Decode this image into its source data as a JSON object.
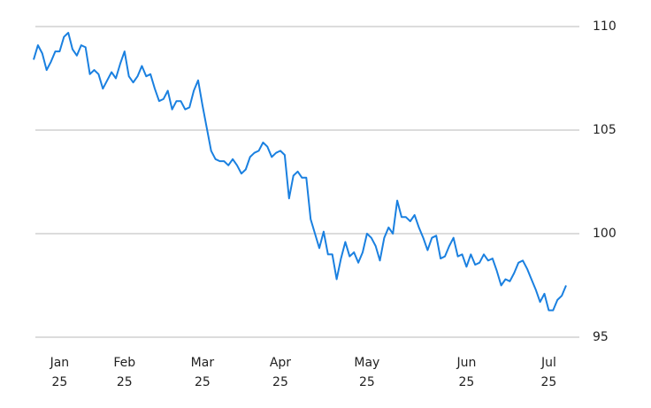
{
  "chart_data": {
    "type": "line",
    "categories": [
      null,
      null,
      null,
      null,
      null,
      null,
      "Jan 25",
      null,
      null,
      null,
      null,
      null,
      null,
      null,
      null,
      null,
      null,
      null,
      null,
      null,
      null,
      "Feb 25",
      null,
      null,
      null,
      null,
      null,
      null,
      null,
      null,
      null,
      null,
      null,
      null,
      null,
      null,
      null,
      null,
      null,
      "Mar 25",
      null,
      null,
      null,
      null,
      null,
      null,
      null,
      null,
      null,
      null,
      null,
      null,
      null,
      null,
      null,
      null,
      null,
      "Apr 25",
      null,
      null,
      null,
      null,
      null,
      null,
      null,
      null,
      null,
      null,
      null,
      null,
      null,
      null,
      null,
      null,
      null,
      null,
      null,
      "May 25",
      null,
      null,
      null,
      null,
      null,
      null,
      null,
      null,
      null,
      null,
      null,
      null,
      null,
      null,
      null,
      null,
      null,
      null,
      null,
      null,
      null,
      null,
      "Jun 25",
      null,
      null,
      null,
      null,
      null,
      null,
      null,
      null,
      null,
      null,
      null,
      null,
      null,
      null,
      null,
      null,
      null,
      null,
      "Jul 25",
      null,
      null,
      null,
      null
    ],
    "values": [
      108.4,
      109.1,
      108.7,
      107.9,
      108.3,
      108.8,
      108.8,
      109.5,
      109.7,
      108.9,
      108.6,
      109.1,
      109.0,
      107.7,
      107.9,
      107.7,
      107.0,
      107.4,
      107.8,
      107.5,
      108.2,
      108.8,
      107.6,
      107.3,
      107.6,
      108.1,
      107.6,
      107.7,
      107.0,
      106.4,
      106.5,
      106.9,
      106.0,
      106.4,
      106.4,
      106.0,
      106.1,
      106.9,
      107.4,
      106.2,
      105.1,
      104.0,
      103.6,
      103.5,
      103.5,
      103.3,
      103.6,
      103.3,
      102.9,
      103.1,
      103.7,
      103.9,
      104.0,
      104.4,
      104.2,
      103.7,
      103.9,
      104.0,
      103.8,
      101.7,
      102.8,
      103.0,
      102.7,
      102.7,
      100.7,
      100.0,
      99.3,
      100.1,
      99.0,
      99.0,
      97.8,
      98.8,
      99.6,
      98.9,
      99.1,
      98.6,
      99.1,
      100.0,
      99.8,
      99.4,
      98.7,
      99.8,
      100.3,
      100.0,
      101.6,
      100.8,
      100.8,
      100.6,
      100.9,
      100.3,
      99.8,
      99.2,
      99.8,
      99.9,
      98.8,
      98.9,
      99.4,
      99.8,
      98.9,
      99.0,
      98.4,
      99.0,
      98.5,
      98.6,
      99.0,
      98.7,
      98.8,
      98.2,
      97.5,
      97.8,
      97.7,
      98.1,
      98.6,
      98.7,
      98.3,
      97.8,
      97.3,
      96.7,
      97.1,
      96.3,
      96.3,
      96.8,
      97.0,
      97.5
    ],
    "color": "#1a80e0",
    "ylim": [
      94.6,
      111.2
    ],
    "yticks": [
      95,
      100,
      105,
      110
    ],
    "grid": true
  }
}
